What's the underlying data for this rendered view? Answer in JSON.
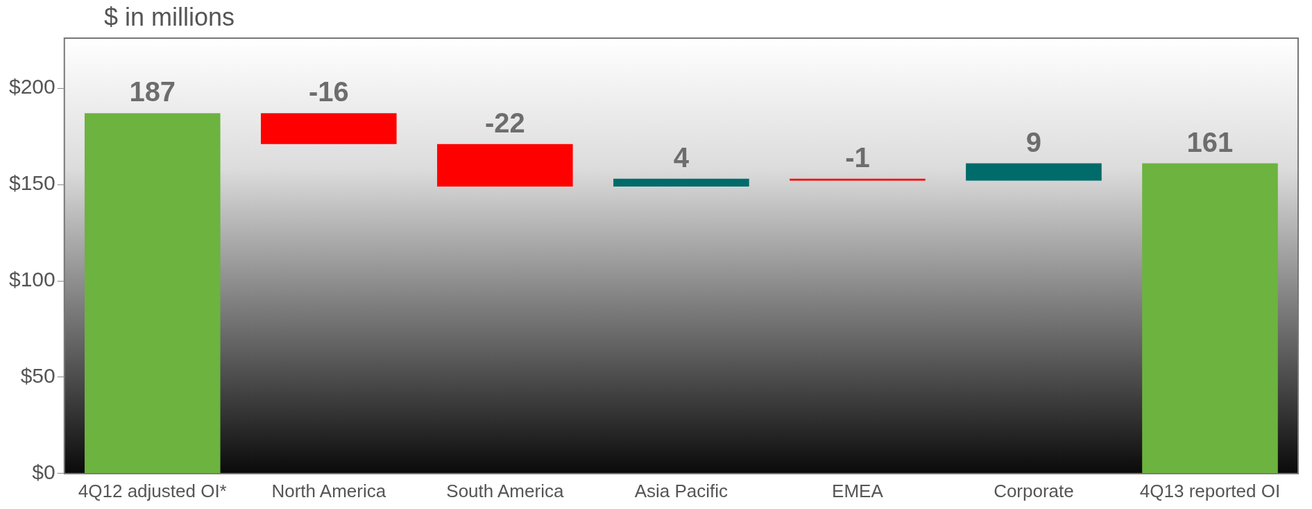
{
  "chart_data": {
    "type": "bar",
    "ylabel": "$ in millions",
    "categories": [
      "4Q12 adjusted OI*",
      "North America",
      "South America",
      "Asia Pacific",
      "EMEA",
      "Corporate",
      "4Q13 reported OI"
    ],
    "values": [
      187,
      -16,
      -22,
      4,
      -1,
      9,
      161
    ],
    "base": [
      0,
      187,
      171,
      149,
      153,
      152,
      0
    ],
    "colors": [
      "#6db33f",
      "#ff0000",
      "#ff0000",
      "#006b6b",
      "#ff0000",
      "#006b6b",
      "#6db33f"
    ],
    "ylim": [
      0,
      226
    ],
    "yticks": [
      {
        "value": 0,
        "label": "$0"
      },
      {
        "value": 50,
        "label": "$50"
      },
      {
        "value": 100,
        "label": "$100"
      },
      {
        "value": 150,
        "label": "$150"
      },
      {
        "value": 200,
        "label": "$200"
      }
    ],
    "data_labels": true,
    "grid": false,
    "legend": false
  }
}
